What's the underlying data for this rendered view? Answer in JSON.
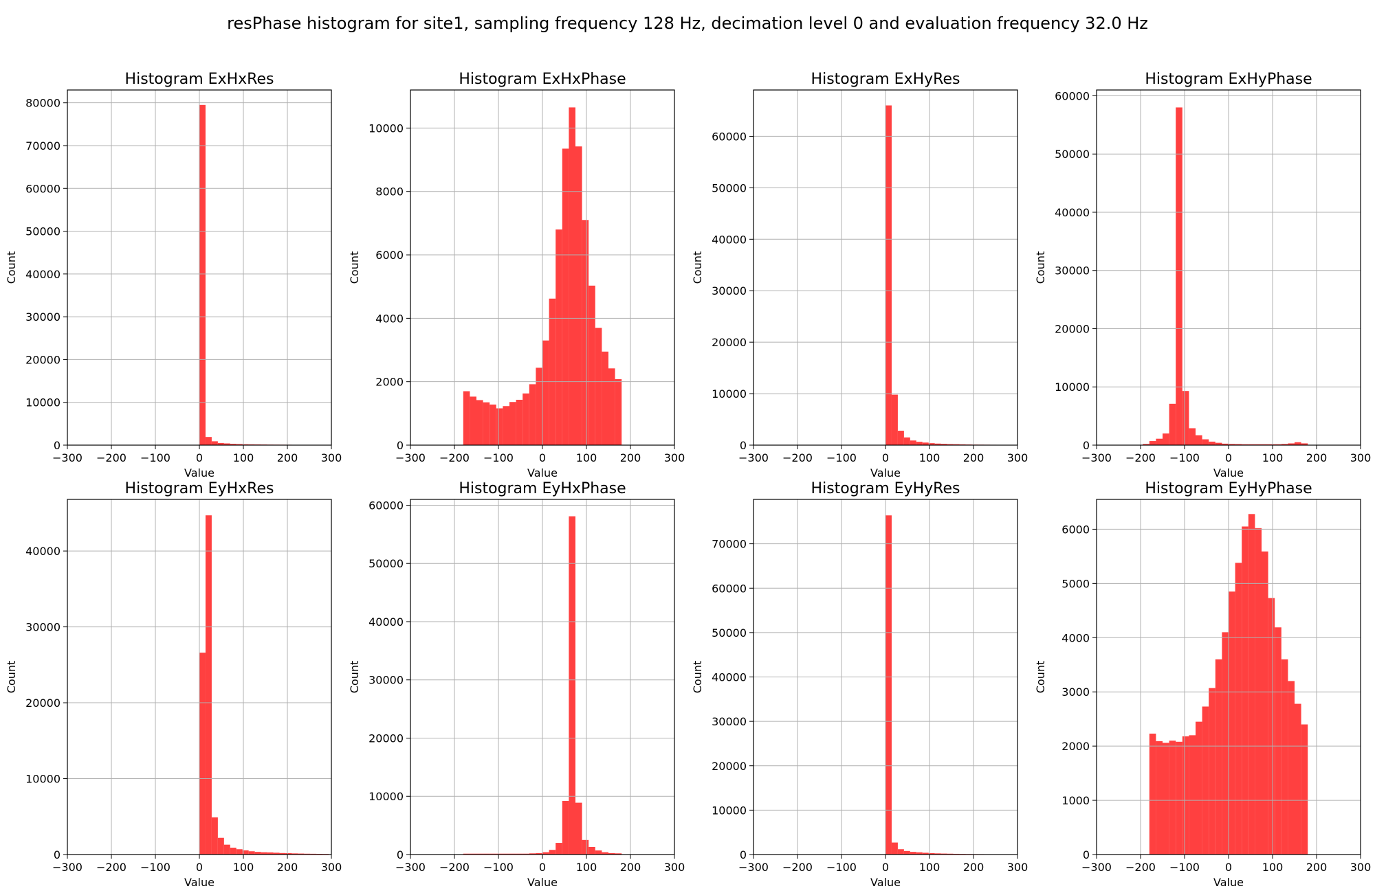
{
  "figure": {
    "title": "resPhase histogram for site1, sampling frequency 128 Hz, decimation level 0 and evaluation frequency 32.0 Hz",
    "bar_color": "#ff4040",
    "grid_color": "#b0b0b0"
  },
  "chart_data": [
    {
      "type": "bar",
      "title": "Histogram ExHxRes",
      "xlabel": "Value",
      "ylabel": "Count",
      "xlim": [
        -300,
        300
      ],
      "ylim": [
        0,
        83000
      ],
      "xticks": [
        -300,
        -200,
        -100,
        0,
        100,
        200,
        300
      ],
      "yticks": [
        0,
        10000,
        20000,
        30000,
        40000,
        50000,
        60000,
        70000,
        80000
      ],
      "grid": true,
      "bin_edges": [
        0,
        14,
        28,
        42,
        56,
        70,
        84,
        98,
        112,
        126,
        140,
        154,
        168,
        182,
        196,
        210,
        224,
        238,
        252,
        266
      ],
      "counts": [
        79500,
        1900,
        900,
        500,
        400,
        300,
        250,
        200,
        180,
        160,
        140,
        120,
        110,
        100,
        90,
        80,
        70,
        50,
        30
      ]
    },
    {
      "type": "bar",
      "title": "Histogram ExHxPhase",
      "xlabel": "Value",
      "ylabel": "Count",
      "xlim": [
        -300,
        300
      ],
      "ylim": [
        0,
        11200
      ],
      "xticks": [
        -300,
        -200,
        -100,
        0,
        100,
        200,
        300
      ],
      "yticks": [
        0,
        2000,
        4000,
        6000,
        8000,
        10000
      ],
      "grid": true,
      "bin_edges": [
        -180,
        -165,
        -150,
        -135,
        -120,
        -105,
        -90,
        -75,
        -60,
        -45,
        -30,
        -15,
        0,
        15,
        30,
        45,
        60,
        75,
        90,
        105,
        120,
        135,
        150,
        165,
        180
      ],
      "counts": [
        1700,
        1530,
        1420,
        1350,
        1280,
        1160,
        1230,
        1360,
        1430,
        1630,
        1920,
        2440,
        3300,
        4620,
        6800,
        9350,
        10650,
        9420,
        7100,
        5030,
        3700,
        2950,
        2420,
        2080
      ]
    },
    {
      "type": "bar",
      "title": "Histogram ExHyRes",
      "xlabel": "Value",
      "ylabel": "Count",
      "xlim": [
        -300,
        300
      ],
      "ylim": [
        0,
        69000
      ],
      "xticks": [
        -300,
        -200,
        -100,
        0,
        100,
        200,
        300
      ],
      "yticks": [
        0,
        10000,
        20000,
        30000,
        40000,
        50000,
        60000
      ],
      "grid": true,
      "bin_edges": [
        0,
        14,
        28,
        42,
        56,
        70,
        84,
        98,
        112,
        126,
        140,
        154,
        168,
        182,
        196,
        210,
        224,
        238,
        252,
        266,
        280,
        294
      ],
      "counts": [
        66000,
        9800,
        2800,
        1500,
        900,
        650,
        500,
        380,
        300,
        250,
        200,
        180,
        150,
        120,
        100,
        90,
        80,
        70,
        60,
        50,
        40
      ]
    },
    {
      "type": "bar",
      "title": "Histogram ExHyPhase",
      "xlabel": "Value",
      "ylabel": "Count",
      "xlim": [
        -300,
        300
      ],
      "ylim": [
        0,
        61000
      ],
      "xticks": [
        -300,
        -200,
        -100,
        0,
        100,
        200,
        300
      ],
      "yticks": [
        0,
        10000,
        20000,
        30000,
        40000,
        50000,
        60000
      ],
      "grid": true,
      "bin_edges": [
        -195,
        -180,
        -165,
        -150,
        -135,
        -120,
        -105,
        -90,
        -75,
        -60,
        -45,
        -30,
        -15,
        0,
        15,
        30,
        45,
        60,
        75,
        90,
        105,
        120,
        135,
        150,
        165,
        180
      ],
      "counts": [
        200,
        700,
        1100,
        2000,
        7100,
        58000,
        9300,
        2900,
        1700,
        1000,
        600,
        400,
        250,
        200,
        180,
        150,
        150,
        150,
        150,
        150,
        150,
        200,
        300,
        500,
        300
      ]
    },
    {
      "type": "bar",
      "title": "Histogram EyHxRes",
      "xlabel": "Value",
      "ylabel": "Count",
      "xlim": [
        -300,
        300
      ],
      "ylim": [
        0,
        46800
      ],
      "xticks": [
        -300,
        -200,
        -100,
        0,
        100,
        200,
        300
      ],
      "yticks": [
        0,
        10000,
        20000,
        30000,
        40000
      ],
      "grid": true,
      "bin_edges": [
        0,
        14,
        28,
        42,
        56,
        70,
        84,
        98,
        112,
        126,
        140,
        154,
        168,
        182,
        196,
        210,
        224,
        238,
        252,
        266,
        280,
        294
      ],
      "counts": [
        26600,
        44700,
        4900,
        2200,
        1300,
        900,
        700,
        550,
        430,
        350,
        300,
        280,
        240,
        200,
        180,
        150,
        130,
        110,
        100,
        90,
        80
      ]
    },
    {
      "type": "bar",
      "title": "Histogram EyHxPhase",
      "xlabel": "Value",
      "ylabel": "Count",
      "xlim": [
        -300,
        300
      ],
      "ylim": [
        0,
        61000
      ],
      "xticks": [
        -300,
        -200,
        -100,
        0,
        100,
        200,
        300
      ],
      "yticks": [
        0,
        10000,
        20000,
        30000,
        40000,
        50000,
        60000
      ],
      "grid": true,
      "bin_edges": [
        -180,
        -165,
        -150,
        -135,
        -120,
        -105,
        -90,
        -75,
        -60,
        -45,
        -30,
        -15,
        0,
        15,
        30,
        45,
        60,
        75,
        90,
        105,
        120,
        135,
        150,
        165,
        180
      ],
      "counts": [
        150,
        150,
        150,
        150,
        150,
        150,
        150,
        150,
        150,
        150,
        200,
        250,
        400,
        800,
        2000,
        9200,
        58100,
        8900,
        2500,
        1300,
        700,
        400,
        250,
        200
      ]
    },
    {
      "type": "bar",
      "title": "Histogram EyHyRes",
      "xlabel": "Value",
      "ylabel": "Count",
      "xlim": [
        -300,
        300
      ],
      "ylim": [
        0,
        80000
      ],
      "xticks": [
        -300,
        -200,
        -100,
        0,
        100,
        200,
        300
      ],
      "yticks": [
        0,
        10000,
        20000,
        30000,
        40000,
        50000,
        60000,
        70000
      ],
      "grid": true,
      "bin_edges": [
        0,
        14,
        28,
        42,
        56,
        70,
        84,
        98,
        112,
        126,
        140,
        154,
        168,
        182,
        196,
        210,
        224,
        238,
        252,
        266,
        280,
        294
      ],
      "counts": [
        76400,
        2700,
        1200,
        800,
        600,
        500,
        400,
        320,
        260,
        220,
        190,
        160,
        140,
        120,
        100,
        90,
        80,
        70,
        60,
        50,
        40
      ]
    },
    {
      "type": "bar",
      "title": "Histogram EyHyPhase",
      "xlabel": "Value",
      "ylabel": "Count",
      "xlim": [
        -300,
        300
      ],
      "ylim": [
        0,
        6550
      ],
      "xticks": [
        -300,
        -200,
        -100,
        0,
        100,
        200,
        300
      ],
      "yticks": [
        0,
        1000,
        2000,
        3000,
        4000,
        5000,
        6000
      ],
      "grid": true,
      "bin_edges": [
        -180,
        -165,
        -150,
        -135,
        -120,
        -105,
        -90,
        -75,
        -60,
        -45,
        -30,
        -15,
        0,
        15,
        30,
        45,
        60,
        75,
        90,
        105,
        120,
        135,
        150,
        165,
        180
      ],
      "counts": [
        2230,
        2090,
        2060,
        2100,
        2080,
        2180,
        2200,
        2450,
        2730,
        3070,
        3600,
        4100,
        4850,
        5380,
        6050,
        6280,
        6020,
        5590,
        4730,
        4190,
        3600,
        3200,
        2780,
        2400
      ]
    }
  ]
}
